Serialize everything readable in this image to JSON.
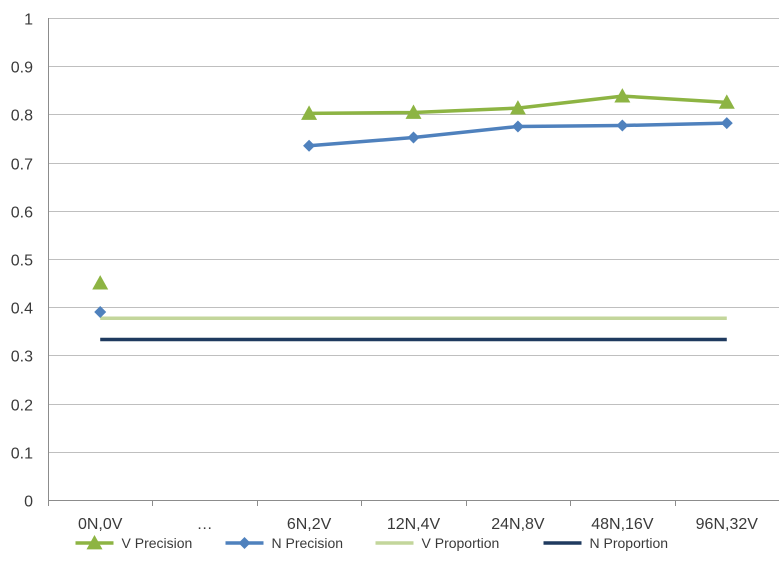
{
  "chart_data": {
    "type": "line",
    "categories": [
      "0N,0V",
      "…",
      "6N,2V",
      "12N,4V",
      "24N,8V",
      "48N,16V",
      "96N,32V"
    ],
    "ylim": [
      0,
      1
    ],
    "yticks": [
      "0",
      "0.1",
      "0.2",
      "0.3",
      "0.4",
      "0.5",
      "0.6",
      "0.7",
      "0.8",
      "0.9",
      "1"
    ],
    "grid": true,
    "legend": "bottom",
    "series": [
      {
        "name": "V Precision",
        "color": "#8db443",
        "marker": "triangle",
        "values": [
          0.45,
          null,
          0.802,
          0.804,
          0.813,
          0.838,
          0.825
        ]
      },
      {
        "name": "N Precision",
        "color": "#4f81bd",
        "marker": "diamond",
        "values": [
          0.39,
          null,
          0.735,
          0.752,
          0.775,
          0.777,
          0.782
        ]
      },
      {
        "name": "V Proportion",
        "color": "#c3d69b",
        "marker": "none",
        "values": [
          0.377,
          0.377,
          0.377,
          0.377,
          0.377,
          0.377,
          0.377
        ]
      },
      {
        "name": "N Proportion",
        "color": "#1f3a5f",
        "marker": "none",
        "values": [
          0.333,
          0.333,
          0.333,
          0.333,
          0.333,
          0.333,
          0.333
        ]
      }
    ]
  }
}
